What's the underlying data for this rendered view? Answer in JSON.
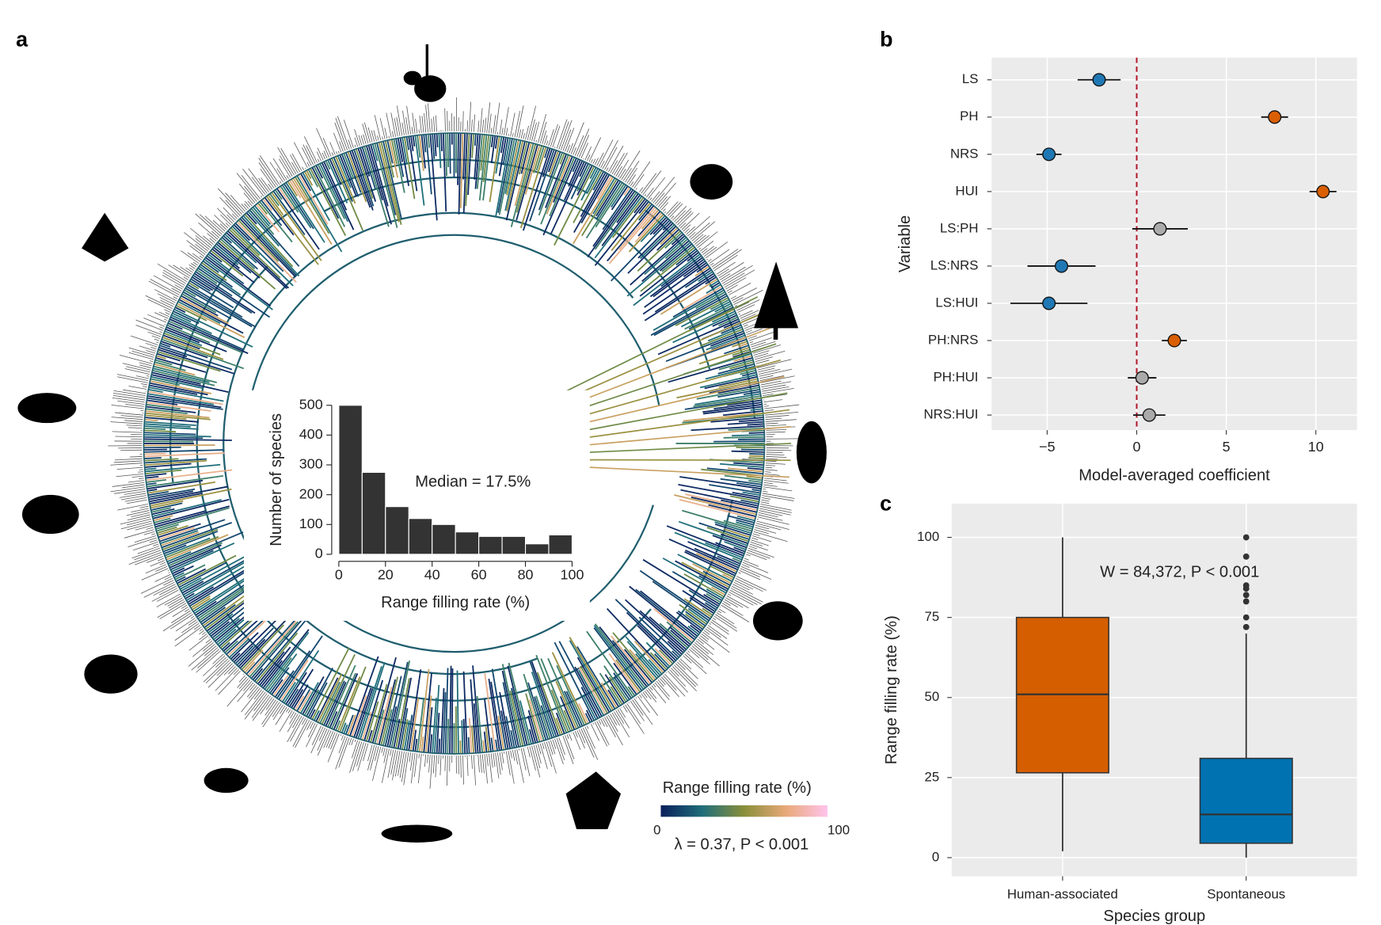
{
  "chart_data": [
    {
      "type": "histogram",
      "panel": "a",
      "xlabel": "Range filling rate (%)",
      "ylabel": "Number of species",
      "annotation": "Median = 17.5%",
      "bins": [
        0,
        10,
        20,
        30,
        40,
        50,
        60,
        70,
        80,
        90,
        100
      ],
      "values": [
        500,
        275,
        160,
        120,
        100,
        75,
        60,
        60,
        35,
        65
      ],
      "color": "#333333",
      "xlim": [
        0,
        100
      ],
      "xticks": [
        0,
        20,
        40,
        60,
        80,
        100
      ],
      "ylim": [
        0,
        500
      ],
      "yticks": [
        0,
        100,
        200,
        300,
        400,
        500
      ],
      "colorbar_title": "Range filling rate (%)",
      "colorbar_ticks": [
        0,
        100
      ],
      "colorbar_colors": [
        "#0b1f5c",
        "#1f6e7a",
        "#8a8f3a",
        "#e8a878",
        "#ffc4ec"
      ],
      "stat_label": "λ = 0.37, P < 0.001"
    },
    {
      "type": "dotplot",
      "panel": "b",
      "xlabel": "Model-averaged coefficient",
      "ylabel": "Variable",
      "categories": [
        "LS",
        "PH",
        "NRS",
        "HUI",
        "LS:PH",
        "LS:NRS",
        "LS:HUI",
        "PH:NRS",
        "PH:HUI",
        "NRS:HUI"
      ],
      "values": [
        -2.1,
        7.7,
        -4.9,
        10.4,
        1.3,
        -4.2,
        -4.9,
        2.1,
        0.3,
        0.7
      ],
      "errors": [
        1.2,
        0.75,
        0.7,
        0.75,
        1.55,
        1.9,
        2.15,
        0.7,
        0.8,
        0.9
      ],
      "colors": [
        "#1f78b4",
        "#d95f02",
        "#1f78b4",
        "#d95f02",
        "#aaaaaa",
        "#1f78b4",
        "#1f78b4",
        "#d95f02",
        "#aaaaaa",
        "#aaaaaa"
      ],
      "xlim": [
        -8.1,
        12.3
      ],
      "xticks": [
        {
          "value": -5,
          "label": "−5"
        },
        0,
        5,
        10
      ],
      "ref_line": 0,
      "ref_color": "#b2182b",
      "grid": true
    },
    {
      "type": "boxplot",
      "panel": "c",
      "xlabel": "Species group",
      "ylabel": "Range filling rate (%)",
      "annotation": "W = 84,372, P < 0.001",
      "categories": [
        "Human-associated",
        "Spontaneous"
      ],
      "stats": [
        {
          "whislo": 2,
          "q1": 26.5,
          "med": 51,
          "q3": 75,
          "whishi": 100,
          "outliers": []
        },
        {
          "whislo": 0,
          "q1": 4.5,
          "med": 13.5,
          "q3": 31,
          "whishi": 70,
          "outliers": [
            100,
            94,
            85,
            84,
            82,
            80,
            75,
            72
          ]
        }
      ],
      "colors": [
        "#d55e00",
        "#0072b2"
      ],
      "ylim": [
        -5.8,
        110.5
      ],
      "yticks": [
        0,
        25,
        50,
        75,
        100
      ],
      "grid": true
    }
  ]
}
